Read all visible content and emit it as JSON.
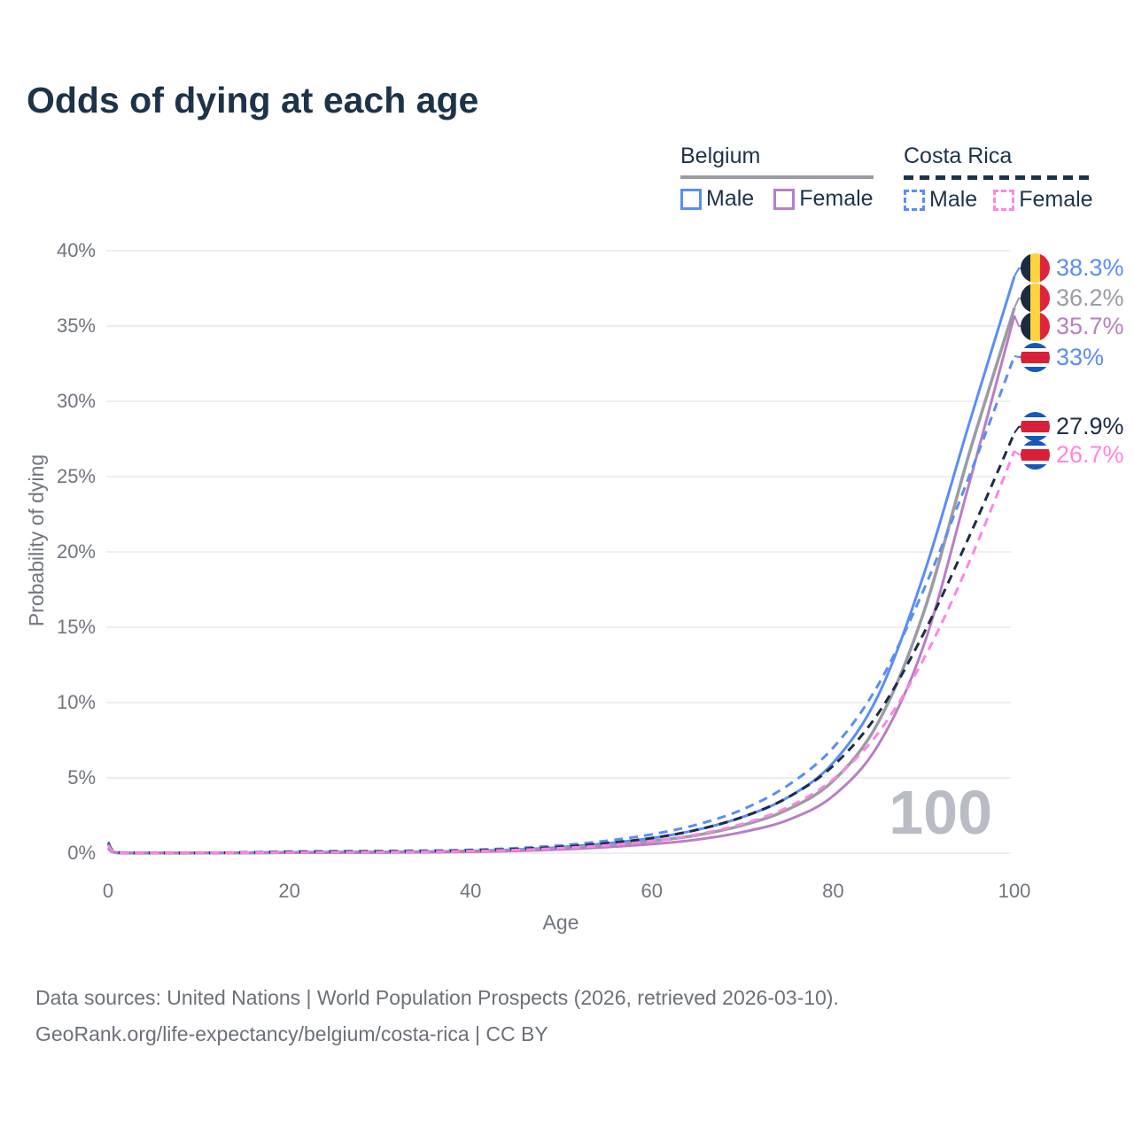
{
  "title": "Odds of dying at each age",
  "legend": {
    "belgium": {
      "title": "Belgium",
      "male": "Male",
      "female": "Female"
    },
    "costa_rica": {
      "title": "Costa Rica",
      "male": "Male",
      "female": "Female"
    }
  },
  "watermark_age": "100",
  "footer": {
    "line1": "Data sources: United Nations | World Population Prospects (2026, retrieved 2026-03-10).",
    "line2": "GeoRank.org/life-expectancy/belgium/costa-rica | CC BY"
  },
  "colors": {
    "title_text": "#1d3349",
    "axis_text": "#71757e",
    "gridline": "#e9e9ed",
    "watermark": "#b9bcc4",
    "belgium_male": "#5b8df6",
    "belgium_both": "#9b9ba3",
    "belgium_female": "#b77fc4",
    "costa_rica_male": "#5b8df6",
    "costa_rica_both": "#1d2d44",
    "costa_rica_female": "#ff85e2"
  },
  "chart_data": {
    "type": "line",
    "title": "Odds of dying at each age",
    "xlabel": "Age",
    "ylabel": "Probability of dying",
    "xlim": [
      0,
      100
    ],
    "ylim": [
      0,
      40
    ],
    "grid": true,
    "legend_position": "top-right",
    "x_ticks": [
      0,
      20,
      40,
      60,
      80,
      100
    ],
    "y_ticks": [
      0,
      5,
      10,
      15,
      20,
      25,
      30,
      35,
      40
    ],
    "y_tick_suffix": "%",
    "ages": [
      0,
      1,
      5,
      10,
      15,
      20,
      25,
      30,
      35,
      40,
      45,
      50,
      55,
      60,
      65,
      70,
      75,
      80,
      85,
      90,
      95,
      100
    ],
    "series": [
      {
        "id": "belgium-male",
        "name": "Belgium Male",
        "country": "Belgium",
        "sex": "Male",
        "style": "solid",
        "color": "#5b8df6",
        "flag": "belgium",
        "end_label": "38.3%",
        "end_value": 38.3,
        "values": [
          0.38,
          0.03,
          0.01,
          0.01,
          0.03,
          0.06,
          0.07,
          0.08,
          0.1,
          0.15,
          0.24,
          0.4,
          0.65,
          1.0,
          1.55,
          2.4,
          3.7,
          6.0,
          10.5,
          18.5,
          28.5,
          38.3
        ]
      },
      {
        "id": "belgium-both",
        "name": "Belgium Both sexes",
        "country": "Belgium",
        "sex": "Both",
        "style": "solid",
        "color": "#9b9ba3",
        "flag": "belgium",
        "end_label": "36.2%",
        "end_value": 36.2,
        "values": [
          0.33,
          0.03,
          0.01,
          0.01,
          0.02,
          0.04,
          0.05,
          0.06,
          0.08,
          0.12,
          0.19,
          0.32,
          0.52,
          0.8,
          1.2,
          1.85,
          2.9,
          4.8,
          8.7,
          16.0,
          26.5,
          36.2
        ]
      },
      {
        "id": "belgium-female",
        "name": "Belgium Female",
        "country": "Belgium",
        "sex": "Female",
        "style": "solid",
        "color": "#b77fc4",
        "flag": "belgium",
        "end_label": "35.7%",
        "end_value": 35.7,
        "values": [
          0.29,
          0.02,
          0.01,
          0.01,
          0.02,
          0.03,
          0.03,
          0.04,
          0.06,
          0.09,
          0.15,
          0.25,
          0.4,
          0.6,
          0.9,
          1.4,
          2.2,
          3.8,
          7.2,
          13.8,
          24.5,
          35.7
        ]
      },
      {
        "id": "costa-rica-male",
        "name": "Costa Rica Male",
        "country": "Costa Rica",
        "sex": "Male",
        "style": "dashed",
        "color": "#5b8df6",
        "flag": "costa-rica",
        "end_label": "33%",
        "end_value": 33.0,
        "values": [
          0.75,
          0.05,
          0.02,
          0.02,
          0.05,
          0.11,
          0.13,
          0.14,
          0.17,
          0.22,
          0.33,
          0.52,
          0.82,
          1.25,
          1.9,
          2.9,
          4.5,
          7.0,
          11.2,
          17.5,
          25.0,
          33.0
        ]
      },
      {
        "id": "costa-rica-both",
        "name": "Costa Rica Both sexes",
        "country": "Costa Rica",
        "sex": "Both",
        "style": "dashed",
        "color": "#1d2d44",
        "flag": "costa-rica",
        "end_label": "27.9%",
        "end_value": 27.9,
        "values": [
          0.65,
          0.04,
          0.02,
          0.02,
          0.04,
          0.08,
          0.1,
          0.11,
          0.13,
          0.18,
          0.27,
          0.42,
          0.66,
          1.0,
          1.55,
          2.4,
          3.7,
          5.8,
          9.3,
          14.6,
          21.0,
          27.9
        ]
      },
      {
        "id": "costa-rica-female",
        "name": "Costa Rica Female",
        "country": "Costa Rica",
        "sex": "Female",
        "style": "dashed",
        "color": "#ff85e2",
        "flag": "costa-rica",
        "end_label": "26.7%",
        "end_value": 26.7,
        "values": [
          0.55,
          0.04,
          0.02,
          0.02,
          0.03,
          0.05,
          0.06,
          0.07,
          0.1,
          0.14,
          0.21,
          0.33,
          0.52,
          0.8,
          1.25,
          1.95,
          3.05,
          4.9,
          8.0,
          12.9,
          19.3,
          26.7
        ]
      }
    ]
  }
}
